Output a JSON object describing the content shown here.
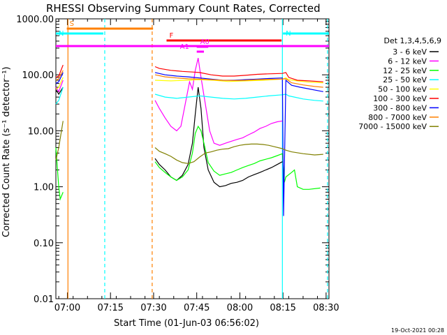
{
  "chart_data": {
    "type": "line",
    "title": "RHESSI Observing Summary Count Rates, Corrected",
    "xlabel": "Start Time (01-Jun-03 06:56:02)",
    "ylabel": "Corrected Count Rate (s⁻¹ detector⁻¹)",
    "x_unit": "minutes after 06:56:02",
    "xlim": [
      0,
      95
    ],
    "ylim": [
      0.01,
      1000
    ],
    "y_scale": "log",
    "grid": false,
    "x_ticks": [
      {
        "x": 4,
        "label": "07:00"
      },
      {
        "x": 19,
        "label": "07:15"
      },
      {
        "x": 34,
        "label": "07:30"
      },
      {
        "x": 49,
        "label": "07:45"
      },
      {
        "x": 64,
        "label": "08:00"
      },
      {
        "x": 79,
        "label": "08:15"
      },
      {
        "x": 94,
        "label": "08:30"
      }
    ],
    "y_ticks": [
      {
        "y": 1000,
        "label": "1000.00"
      },
      {
        "y": 100,
        "label": "100.00"
      },
      {
        "y": 10,
        "label": "10.00"
      },
      {
        "y": 1,
        "label": "1.00"
      },
      {
        "y": 0.1,
        "label": "0.10"
      },
      {
        "y": 0.01,
        "label": "0.01"
      }
    ],
    "legend": {
      "title": "Det 1,3,4,5,6,9",
      "position": "right"
    },
    "series": [
      {
        "name": "3 - 6 keV",
        "color": "#000000",
        "points": [
          [
            0,
            55
          ],
          [
            1,
            45
          ],
          [
            2.5,
            60
          ],
          [
            34.5,
            3.2
          ],
          [
            36,
            2.5
          ],
          [
            38,
            2
          ],
          [
            40,
            1.5
          ],
          [
            42,
            1.3
          ],
          [
            44,
            1.6
          ],
          [
            46,
            2.5
          ],
          [
            47.5,
            6
          ],
          [
            48.5,
            20
          ],
          [
            49.5,
            60
          ],
          [
            50.5,
            25
          ],
          [
            51.5,
            5
          ],
          [
            53,
            2
          ],
          [
            55,
            1.2
          ],
          [
            57,
            1.0
          ],
          [
            59,
            1.05
          ],
          [
            61,
            1.15
          ],
          [
            63,
            1.2
          ],
          [
            65,
            1.3
          ],
          [
            67,
            1.5
          ],
          [
            69,
            1.65
          ],
          [
            71,
            1.8
          ],
          [
            73,
            2.0
          ],
          [
            75,
            2.2
          ],
          [
            77,
            2.5
          ],
          [
            78.8,
            2.8
          ]
        ]
      },
      {
        "name": "6 - 12 keV",
        "color": "#ff00ff",
        "points": [
          [
            0,
            60
          ],
          [
            1,
            50
          ],
          [
            2.5,
            80
          ],
          [
            34.5,
            35
          ],
          [
            36,
            25
          ],
          [
            38,
            17
          ],
          [
            40,
            12
          ],
          [
            42,
            10
          ],
          [
            43.5,
            12
          ],
          [
            45,
            30
          ],
          [
            46.5,
            75
          ],
          [
            47.5,
            55
          ],
          [
            48.5,
            120
          ],
          [
            49.5,
            200
          ],
          [
            50.5,
            90
          ],
          [
            52,
            30
          ],
          [
            53.5,
            10
          ],
          [
            55,
            6
          ],
          [
            57,
            5.5
          ],
          [
            59,
            6
          ],
          [
            61,
            6.5
          ],
          [
            63,
            7
          ],
          [
            65,
            7.5
          ],
          [
            67,
            8.5
          ],
          [
            69,
            9.5
          ],
          [
            71,
            11
          ],
          [
            73,
            12
          ],
          [
            75,
            13.5
          ],
          [
            77,
            14.5
          ],
          [
            78.8,
            15
          ]
        ]
      },
      {
        "name": "12 - 25 keV",
        "color": "#00ff00",
        "points": [
          [
            0,
            5
          ],
          [
            1,
            1
          ],
          [
            1.5,
            0.6
          ],
          [
            2.5,
            0.8
          ],
          [
            34.5,
            2.8
          ],
          [
            36,
            2.2
          ],
          [
            38,
            1.8
          ],
          [
            40,
            1.5
          ],
          [
            42,
            1.3
          ],
          [
            44,
            1.5
          ],
          [
            46,
            2.0
          ],
          [
            47.5,
            4
          ],
          [
            48.5,
            9
          ],
          [
            49.5,
            12
          ],
          [
            50.5,
            10
          ],
          [
            51.5,
            6
          ],
          [
            53,
            2.7
          ],
          [
            55,
            1.9
          ],
          [
            57,
            1.6
          ],
          [
            59,
            1.7
          ],
          [
            61,
            1.8
          ],
          [
            63,
            2.0
          ],
          [
            65,
            2.2
          ],
          [
            67,
            2.4
          ],
          [
            69,
            2.6
          ],
          [
            71,
            2.9
          ],
          [
            73,
            3.1
          ],
          [
            75,
            3.3
          ],
          [
            77,
            3.6
          ],
          [
            78.8,
            3.9
          ],
          [
            79.5,
            1.2
          ],
          [
            80,
            1.5
          ],
          [
            82,
            1.8
          ],
          [
            83,
            2.0
          ],
          [
            84,
            1.0
          ],
          [
            86,
            0.9
          ],
          [
            88,
            0.9
          ],
          [
            92,
            0.95
          ]
        ]
      },
      {
        "name": "25 - 50 keV",
        "color": "#00ffff",
        "points": [
          [
            0,
            30
          ],
          [
            1,
            35
          ],
          [
            2.5,
            60
          ],
          [
            34.5,
            45
          ],
          [
            38,
            40
          ],
          [
            42,
            38
          ],
          [
            46,
            40
          ],
          [
            50,
            42
          ],
          [
            54,
            40
          ],
          [
            58,
            38
          ],
          [
            62,
            37
          ],
          [
            66,
            38
          ],
          [
            70,
            40
          ],
          [
            74,
            42
          ],
          [
            78.8,
            44
          ],
          [
            80,
            45
          ],
          [
            81,
            42
          ],
          [
            83,
            40
          ],
          [
            86,
            37
          ],
          [
            90,
            35
          ],
          [
            93,
            34
          ]
        ]
      },
      {
        "name": "50 - 100 keV",
        "color": "#ffff00",
        "points": [
          [
            0,
            55
          ],
          [
            1,
            60
          ],
          [
            2.5,
            90
          ],
          [
            34.5,
            80
          ],
          [
            40,
            78
          ],
          [
            45,
            80
          ],
          [
            50,
            82
          ],
          [
            55,
            80
          ],
          [
            60,
            76
          ],
          [
            66,
            78
          ],
          [
            72,
            80
          ],
          [
            78.8,
            84
          ],
          [
            80,
            88
          ],
          [
            81,
            82
          ],
          [
            84,
            78
          ],
          [
            88,
            74
          ],
          [
            93,
            72
          ]
        ]
      },
      {
        "name": "100 - 300 keV",
        "color": "#ff0000",
        "points": [
          [
            0,
            90
          ],
          [
            1,
            95
          ],
          [
            2.5,
            150
          ],
          [
            34.5,
            140
          ],
          [
            36,
            130
          ],
          [
            40,
            120
          ],
          [
            44,
            115
          ],
          [
            48,
            112
          ],
          [
            50,
            110
          ],
          [
            54,
            100
          ],
          [
            58,
            95
          ],
          [
            62,
            95
          ],
          [
            66,
            98
          ],
          [
            70,
            102
          ],
          [
            74,
            104
          ],
          [
            78.8,
            106
          ],
          [
            80,
            110
          ],
          [
            81,
            90
          ],
          [
            84,
            80
          ],
          [
            88,
            78
          ],
          [
            93,
            75
          ]
        ]
      },
      {
        "name": "300 - 800 keV",
        "color": "#0000ff",
        "points": [
          [
            0,
            70
          ],
          [
            1,
            75
          ],
          [
            2.5,
            110
          ],
          [
            34.5,
            110
          ],
          [
            38,
            100
          ],
          [
            42,
            95
          ],
          [
            46,
            92
          ],
          [
            50,
            88
          ],
          [
            54,
            84
          ],
          [
            58,
            80
          ],
          [
            62,
            80
          ],
          [
            66,
            82
          ],
          [
            70,
            84
          ],
          [
            74,
            86
          ],
          [
            78.8,
            88
          ],
          [
            79.2,
            0.3
          ],
          [
            80,
            80
          ],
          [
            82,
            65
          ],
          [
            85,
            60
          ],
          [
            88,
            56
          ],
          [
            93,
            50
          ]
        ]
      },
      {
        "name": "800 - 7000 keV",
        "color": "#ff8000",
        "points": [
          [
            0,
            80
          ],
          [
            1,
            85
          ],
          [
            2.5,
            120
          ],
          [
            34.5,
            100
          ],
          [
            38,
            92
          ],
          [
            42,
            88
          ],
          [
            46,
            85
          ],
          [
            50,
            84
          ],
          [
            54,
            82
          ],
          [
            58,
            80
          ],
          [
            62,
            79
          ],
          [
            66,
            80
          ],
          [
            70,
            82
          ],
          [
            74,
            83
          ],
          [
            78.8,
            84
          ],
          [
            80,
            85
          ],
          [
            82,
            72
          ],
          [
            86,
            66
          ],
          [
            90,
            62
          ],
          [
            93,
            60
          ]
        ]
      },
      {
        "name": "7000 - 15000 keV",
        "color": "#808000",
        "points": [
          [
            0,
            3
          ],
          [
            1,
            5
          ],
          [
            2.5,
            15
          ],
          [
            34.5,
            5
          ],
          [
            36,
            4.3
          ],
          [
            38,
            3.9
          ],
          [
            40,
            3.5
          ],
          [
            42,
            3.0
          ],
          [
            44,
            2.7
          ],
          [
            46,
            2.6
          ],
          [
            48,
            2.8
          ],
          [
            50,
            3.4
          ],
          [
            52,
            4.0
          ],
          [
            54,
            4.2
          ],
          [
            56,
            4.5
          ],
          [
            58,
            4.7
          ],
          [
            60,
            4.8
          ],
          [
            62,
            5.2
          ],
          [
            64,
            5.5
          ],
          [
            66,
            5.7
          ],
          [
            68,
            5.8
          ],
          [
            70,
            5.8
          ],
          [
            72,
            5.7
          ],
          [
            74,
            5.5
          ],
          [
            76,
            5.2
          ],
          [
            78.8,
            4.8
          ],
          [
            80,
            4.5
          ],
          [
            82,
            4.2
          ],
          [
            86,
            3.9
          ],
          [
            90,
            3.7
          ],
          [
            93,
            3.8
          ]
        ]
      }
    ],
    "flags": [
      {
        "label": "S",
        "color": "#ff8000",
        "x_start": 3.8,
        "x_end": 33.8,
        "level": 1
      },
      {
        "label": "N",
        "color": "#00ffff",
        "x_start": 0,
        "x_end": 16.5,
        "level": 2
      },
      {
        "label": "N",
        "color": "#00ffff",
        "x_start": 79,
        "x_end": 95,
        "level": 2
      },
      {
        "label": "F",
        "color": "#ff0000",
        "x_start": 38.5,
        "x_end": 78.5,
        "level": 3
      },
      {
        "label": "A0",
        "color": "#ff00ff",
        "x_start": 49,
        "x_end": 53,
        "level": 4
      },
      {
        "label": "A1",
        "color": "#ff00ff",
        "x_start": 49,
        "x_end": 51.5,
        "level": 5
      },
      {
        "label": "",
        "color": "#ff00ff",
        "x_start": 0,
        "x_end": 95,
        "level": 6
      }
    ],
    "vertical_markers": [
      {
        "x": 4.2,
        "color": "#ff8000",
        "style": "solid"
      },
      {
        "x": 17,
        "color": "#00ffff",
        "style": "dashed"
      },
      {
        "x": 33.5,
        "color": "#ff8000",
        "style": "dashed"
      },
      {
        "x": 78.8,
        "color": "#00ffff",
        "style": "solid"
      },
      {
        "x": 94.5,
        "color": "#00ffff",
        "style": "dashed"
      }
    ],
    "timestamp": "19-Oct-2021 00:28"
  }
}
